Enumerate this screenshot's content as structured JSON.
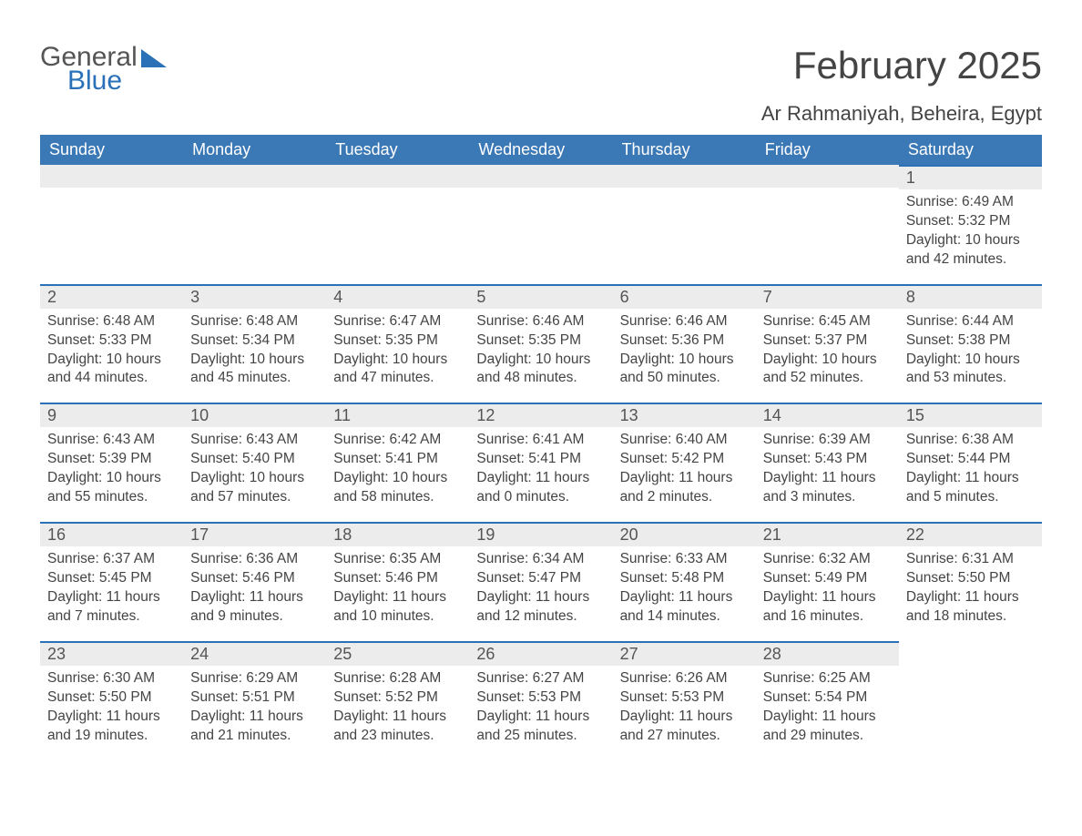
{
  "logo": {
    "text1": "General",
    "text2": "Blue"
  },
  "title": "February 2025",
  "location": "Ar Rahmaniyah, Beheira, Egypt",
  "day_headers": [
    "Sunday",
    "Monday",
    "Tuesday",
    "Wednesday",
    "Thursday",
    "Friday",
    "Saturday"
  ],
  "colors": {
    "header_bg": "#3b78b6",
    "header_text": "#ffffff",
    "daynum_bg": "#ececec",
    "daynum_border": "#2a71b8",
    "body_text": "#444444",
    "logo_gray": "#555555",
    "logo_blue": "#2a71b8",
    "page_bg": "#ffffff"
  },
  "typography": {
    "month_title_pt": 42,
    "location_pt": 22,
    "header_pt": 18,
    "daynum_pt": 18,
    "cell_pt": 15.5,
    "logo_pt": 30
  },
  "layout": {
    "columns": 7,
    "rows": 5,
    "first_day_column_index": 6
  },
  "weeks": [
    [
      null,
      null,
      null,
      null,
      null,
      null,
      {
        "day": "1",
        "sunrise": "Sunrise: 6:49 AM",
        "sunset": "Sunset: 5:32 PM",
        "daylight1": "Daylight: 10 hours",
        "daylight2": "and 42 minutes."
      }
    ],
    [
      {
        "day": "2",
        "sunrise": "Sunrise: 6:48 AM",
        "sunset": "Sunset: 5:33 PM",
        "daylight1": "Daylight: 10 hours",
        "daylight2": "and 44 minutes."
      },
      {
        "day": "3",
        "sunrise": "Sunrise: 6:48 AM",
        "sunset": "Sunset: 5:34 PM",
        "daylight1": "Daylight: 10 hours",
        "daylight2": "and 45 minutes."
      },
      {
        "day": "4",
        "sunrise": "Sunrise: 6:47 AM",
        "sunset": "Sunset: 5:35 PM",
        "daylight1": "Daylight: 10 hours",
        "daylight2": "and 47 minutes."
      },
      {
        "day": "5",
        "sunrise": "Sunrise: 6:46 AM",
        "sunset": "Sunset: 5:35 PM",
        "daylight1": "Daylight: 10 hours",
        "daylight2": "and 48 minutes."
      },
      {
        "day": "6",
        "sunrise": "Sunrise: 6:46 AM",
        "sunset": "Sunset: 5:36 PM",
        "daylight1": "Daylight: 10 hours",
        "daylight2": "and 50 minutes."
      },
      {
        "day": "7",
        "sunrise": "Sunrise: 6:45 AM",
        "sunset": "Sunset: 5:37 PM",
        "daylight1": "Daylight: 10 hours",
        "daylight2": "and 52 minutes."
      },
      {
        "day": "8",
        "sunrise": "Sunrise: 6:44 AM",
        "sunset": "Sunset: 5:38 PM",
        "daylight1": "Daylight: 10 hours",
        "daylight2": "and 53 minutes."
      }
    ],
    [
      {
        "day": "9",
        "sunrise": "Sunrise: 6:43 AM",
        "sunset": "Sunset: 5:39 PM",
        "daylight1": "Daylight: 10 hours",
        "daylight2": "and 55 minutes."
      },
      {
        "day": "10",
        "sunrise": "Sunrise: 6:43 AM",
        "sunset": "Sunset: 5:40 PM",
        "daylight1": "Daylight: 10 hours",
        "daylight2": "and 57 minutes."
      },
      {
        "day": "11",
        "sunrise": "Sunrise: 6:42 AM",
        "sunset": "Sunset: 5:41 PM",
        "daylight1": "Daylight: 10 hours",
        "daylight2": "and 58 minutes."
      },
      {
        "day": "12",
        "sunrise": "Sunrise: 6:41 AM",
        "sunset": "Sunset: 5:41 PM",
        "daylight1": "Daylight: 11 hours",
        "daylight2": "and 0 minutes."
      },
      {
        "day": "13",
        "sunrise": "Sunrise: 6:40 AM",
        "sunset": "Sunset: 5:42 PM",
        "daylight1": "Daylight: 11 hours",
        "daylight2": "and 2 minutes."
      },
      {
        "day": "14",
        "sunrise": "Sunrise: 6:39 AM",
        "sunset": "Sunset: 5:43 PM",
        "daylight1": "Daylight: 11 hours",
        "daylight2": "and 3 minutes."
      },
      {
        "day": "15",
        "sunrise": "Sunrise: 6:38 AM",
        "sunset": "Sunset: 5:44 PM",
        "daylight1": "Daylight: 11 hours",
        "daylight2": "and 5 minutes."
      }
    ],
    [
      {
        "day": "16",
        "sunrise": "Sunrise: 6:37 AM",
        "sunset": "Sunset: 5:45 PM",
        "daylight1": "Daylight: 11 hours",
        "daylight2": "and 7 minutes."
      },
      {
        "day": "17",
        "sunrise": "Sunrise: 6:36 AM",
        "sunset": "Sunset: 5:46 PM",
        "daylight1": "Daylight: 11 hours",
        "daylight2": "and 9 minutes."
      },
      {
        "day": "18",
        "sunrise": "Sunrise: 6:35 AM",
        "sunset": "Sunset: 5:46 PM",
        "daylight1": "Daylight: 11 hours",
        "daylight2": "and 10 minutes."
      },
      {
        "day": "19",
        "sunrise": "Sunrise: 6:34 AM",
        "sunset": "Sunset: 5:47 PM",
        "daylight1": "Daylight: 11 hours",
        "daylight2": "and 12 minutes."
      },
      {
        "day": "20",
        "sunrise": "Sunrise: 6:33 AM",
        "sunset": "Sunset: 5:48 PM",
        "daylight1": "Daylight: 11 hours",
        "daylight2": "and 14 minutes."
      },
      {
        "day": "21",
        "sunrise": "Sunrise: 6:32 AM",
        "sunset": "Sunset: 5:49 PM",
        "daylight1": "Daylight: 11 hours",
        "daylight2": "and 16 minutes."
      },
      {
        "day": "22",
        "sunrise": "Sunrise: 6:31 AM",
        "sunset": "Sunset: 5:50 PM",
        "daylight1": "Daylight: 11 hours",
        "daylight2": "and 18 minutes."
      }
    ],
    [
      {
        "day": "23",
        "sunrise": "Sunrise: 6:30 AM",
        "sunset": "Sunset: 5:50 PM",
        "daylight1": "Daylight: 11 hours",
        "daylight2": "and 19 minutes."
      },
      {
        "day": "24",
        "sunrise": "Sunrise: 6:29 AM",
        "sunset": "Sunset: 5:51 PM",
        "daylight1": "Daylight: 11 hours",
        "daylight2": "and 21 minutes."
      },
      {
        "day": "25",
        "sunrise": "Sunrise: 6:28 AM",
        "sunset": "Sunset: 5:52 PM",
        "daylight1": "Daylight: 11 hours",
        "daylight2": "and 23 minutes."
      },
      {
        "day": "26",
        "sunrise": "Sunrise: 6:27 AM",
        "sunset": "Sunset: 5:53 PM",
        "daylight1": "Daylight: 11 hours",
        "daylight2": "and 25 minutes."
      },
      {
        "day": "27",
        "sunrise": "Sunrise: 6:26 AM",
        "sunset": "Sunset: 5:53 PM",
        "daylight1": "Daylight: 11 hours",
        "daylight2": "and 27 minutes."
      },
      {
        "day": "28",
        "sunrise": "Sunrise: 6:25 AM",
        "sunset": "Sunset: 5:54 PM",
        "daylight1": "Daylight: 11 hours",
        "daylight2": "and 29 minutes."
      },
      null
    ]
  ]
}
